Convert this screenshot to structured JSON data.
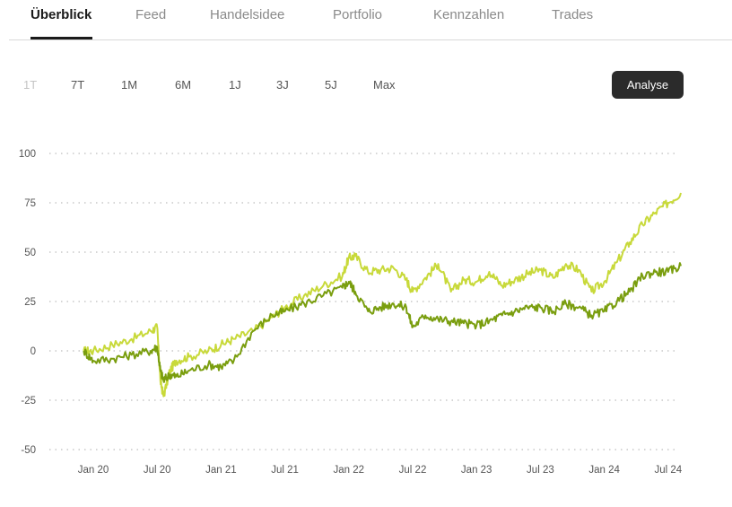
{
  "tabs": [
    {
      "label": "Überblick",
      "active": true
    },
    {
      "label": "Feed",
      "active": false
    },
    {
      "label": "Handelsidee",
      "active": false
    },
    {
      "label": "Portfolio",
      "active": false
    },
    {
      "label": "Kennzahlen",
      "active": false
    },
    {
      "label": "Trades",
      "active": false
    }
  ],
  "ranges": [
    {
      "label": "1T",
      "disabled": true
    },
    {
      "label": "7T",
      "disabled": false
    },
    {
      "label": "1M",
      "disabled": false
    },
    {
      "label": "6M",
      "disabled": false
    },
    {
      "label": "1J",
      "disabled": false
    },
    {
      "label": "3J",
      "disabled": false
    },
    {
      "label": "5J",
      "disabled": false
    },
    {
      "label": "Max",
      "disabled": false
    }
  ],
  "analyse_label": "Analyse",
  "colors": {
    "series_light": "#c8d93a",
    "series_dark": "#7a9e0f",
    "grid": "#bdbdbd"
  },
  "chart_data": {
    "type": "line",
    "y_ticks": [
      "100",
      "75",
      "50",
      "25",
      "0",
      "-25",
      "-50"
    ],
    "y_values": [
      100,
      75,
      50,
      25,
      0,
      -25,
      -50
    ],
    "x_ticks": [
      "Jan 20",
      "Jul 20",
      "Jan 21",
      "Jul 21",
      "Jan 22",
      "Jul 22",
      "Jan 23",
      "Jul 23",
      "Jan 24",
      "Jul 24"
    ],
    "x_range": [
      -0.2,
      9.3
    ],
    "ylim": [
      -50,
      100
    ],
    "grid": true,
    "series": [
      {
        "key": "light",
        "x": [
          -0.15,
          0,
          0.3,
          0.6,
          0.9,
          1.0,
          1.05,
          1.1,
          1.2,
          1.3,
          1.5,
          1.8,
          2.0,
          2.2,
          2.5,
          2.8,
          3.0,
          3.3,
          3.6,
          3.9,
          4.0,
          4.1,
          4.3,
          4.5,
          4.7,
          4.9,
          5.0,
          5.2,
          5.4,
          5.6,
          5.8,
          6.0,
          6.2,
          6.4,
          6.6,
          6.8,
          7.0,
          7.2,
          7.4,
          7.6,
          7.8,
          8.0,
          8.2,
          8.4,
          8.6,
          8.8,
          9.0,
          9.2
        ],
        "y": [
          0,
          0,
          3,
          6,
          10,
          12,
          -15,
          -23,
          -10,
          -5,
          -3,
          0,
          3,
          6,
          10,
          17,
          22,
          28,
          33,
          38,
          47,
          48,
          40,
          41,
          42,
          36,
          30,
          37,
          44,
          30,
          36,
          35,
          40,
          33,
          36,
          39,
          41,
          37,
          44,
          41,
          30,
          35,
          45,
          55,
          64,
          70,
          75,
          80
        ]
      },
      {
        "key": "dark",
        "x": [
          -0.15,
          0,
          0.3,
          0.6,
          0.9,
          1.0,
          1.05,
          1.1,
          1.2,
          1.3,
          1.5,
          1.8,
          2.0,
          2.2,
          2.5,
          2.8,
          3.0,
          3.3,
          3.6,
          3.9,
          4.0,
          4.1,
          4.3,
          4.5,
          4.7,
          4.9,
          5.0,
          5.2,
          5.4,
          5.6,
          5.8,
          6.0,
          6.2,
          6.4,
          6.6,
          6.8,
          7.0,
          7.2,
          7.4,
          7.6,
          7.8,
          8.0,
          8.2,
          8.4,
          8.6,
          8.8,
          9.0,
          9.2
        ],
        "y": [
          0,
          -5,
          -4,
          -2,
          0,
          2,
          -10,
          -15,
          -12,
          -13,
          -10,
          -7,
          -8,
          -5,
          10,
          18,
          20,
          24,
          28,
          32,
          35,
          30,
          20,
          22,
          24,
          22,
          12,
          18,
          16,
          15,
          14,
          13,
          15,
          18,
          20,
          22,
          22,
          20,
          24,
          22,
          18,
          20,
          25,
          30,
          38,
          40,
          40,
          43
        ]
      }
    ]
  }
}
